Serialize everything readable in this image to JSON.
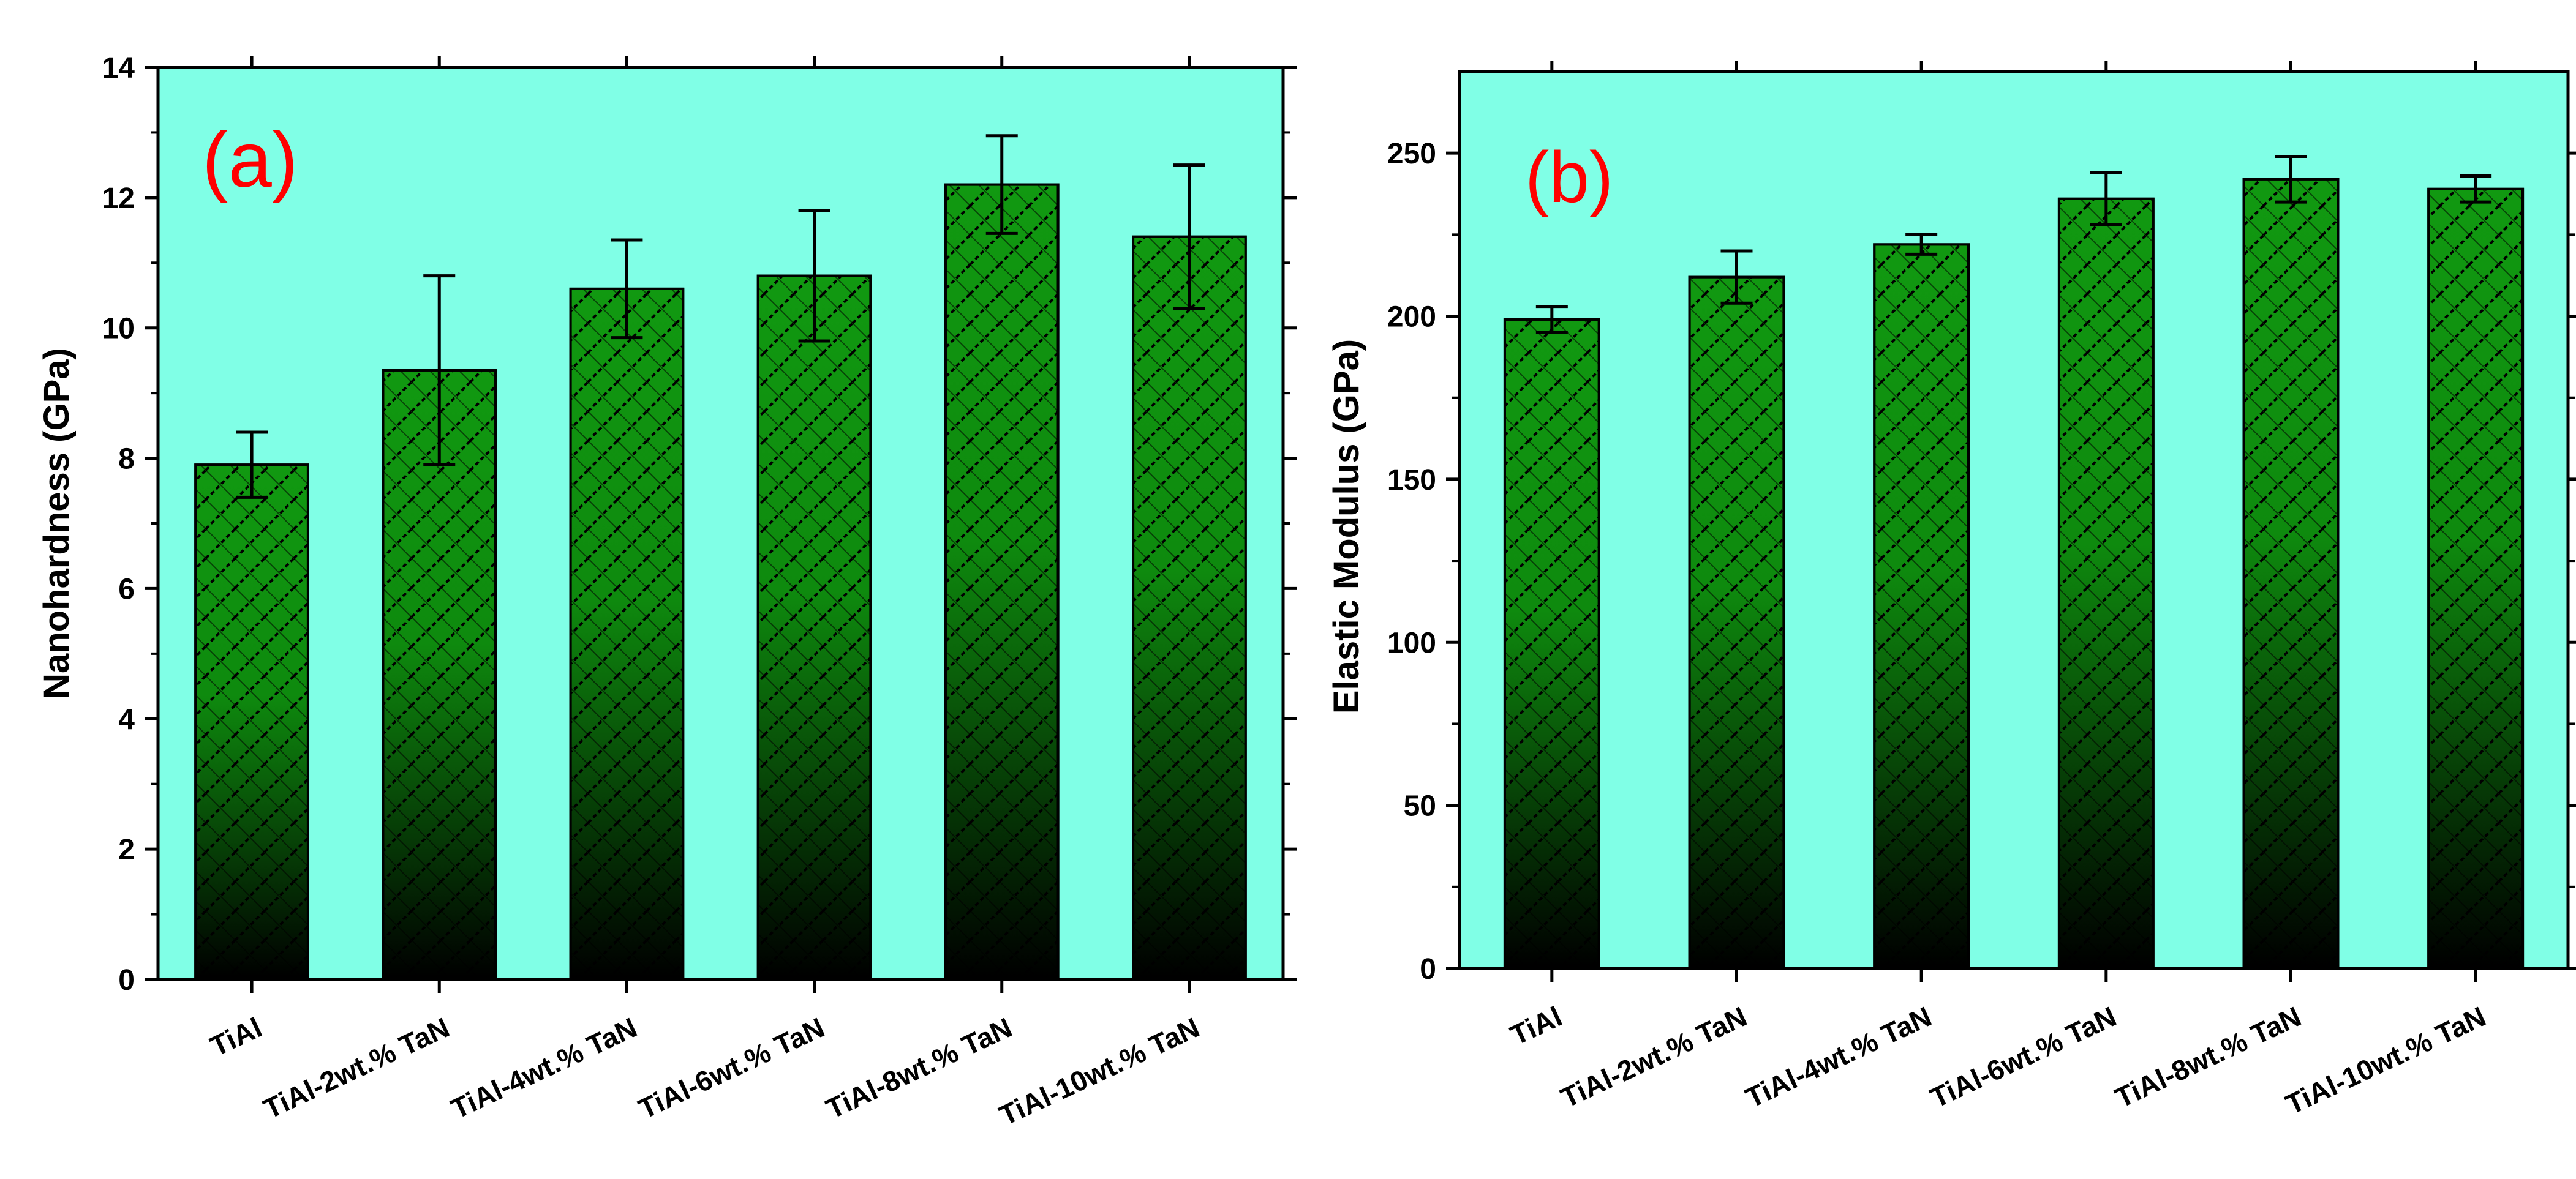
{
  "chart_data": [
    {
      "type": "bar",
      "panel_label": "(a)",
      "ylabel": "Nanohardness (GPa)",
      "xlabel": "",
      "categories": [
        "TiAl",
        "TiAl-2wt.% TaN",
        "TiAl-4wt.% TaN",
        "TiAl-6wt.% TaN",
        "TiAl-8wt.% TaN",
        "TiAl-10wt.% TaN"
      ],
      "values": [
        7.9,
        9.35,
        10.6,
        10.8,
        12.2,
        11.4
      ],
      "errors": [
        0.5,
        1.45,
        0.75,
        1.0,
        0.75,
        1.1
      ],
      "ylim": [
        0,
        14
      ],
      "yticks": [
        0,
        2,
        4,
        6,
        8,
        10,
        12,
        14
      ],
      "ytick_labels": [
        "0",
        "2",
        "4",
        "6",
        "8",
        "10",
        "12",
        "14"
      ],
      "grid": false,
      "legend": "none"
    },
    {
      "type": "bar",
      "panel_label": "(b)",
      "ylabel": "Elastic Modulus (GPa)",
      "xlabel": "",
      "categories": [
        "TiAl",
        "TiAl-2wt.% TaN",
        "TiAl-4wt.% TaN",
        "TiAl-6wt.% TaN",
        "TiAl-8wt.% TaN",
        "TiAl-10wt.% TaN"
      ],
      "values": [
        199,
        212,
        222,
        236,
        242,
        239
      ],
      "errors": [
        4,
        8,
        3,
        8,
        7,
        4
      ],
      "ylim": [
        0,
        275
      ],
      "yticks": [
        0,
        50,
        100,
        150,
        200,
        250
      ],
      "ytick_labels": [
        "0",
        "50",
        "100",
        "150",
        "200",
        "250"
      ],
      "grid": false,
      "legend": "none"
    }
  ],
  "colors": {
    "plot_background": "#80FFE6",
    "bar_top": "#119911",
    "bar_bottom": "#000000",
    "hatch": "#000000",
    "panel_label": "#FF0000",
    "axis": "#000000"
  }
}
